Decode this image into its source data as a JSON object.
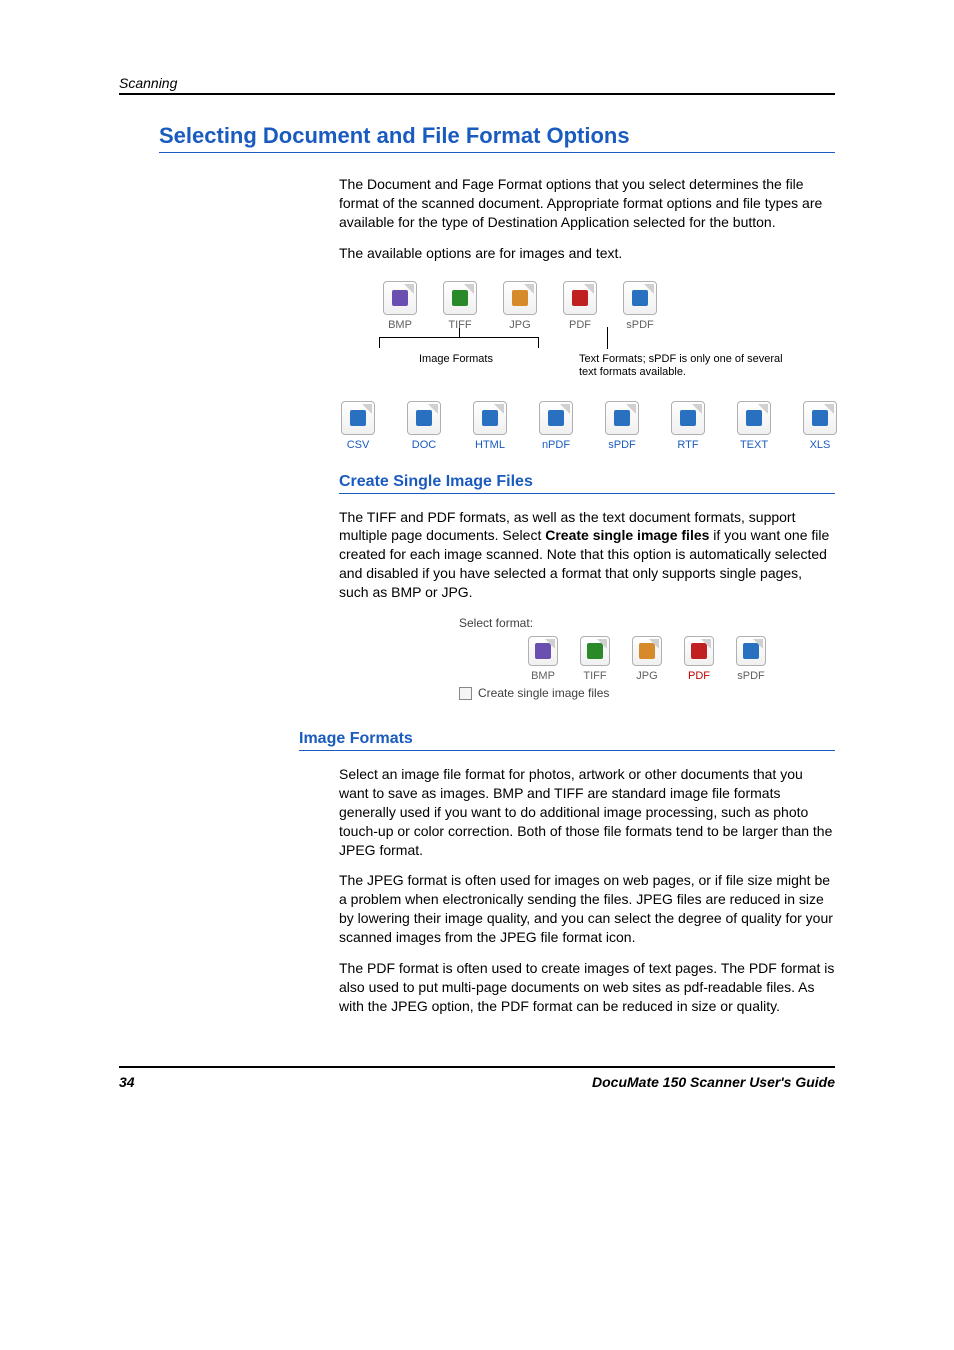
{
  "header": {
    "running": "Scanning"
  },
  "title": "Selecting Document and File Format Options",
  "intro": {
    "p1": "The Document and Fage Format options that you select determines the file format of the scanned document. Appropriate format options and file types are available for the type of Destination Application selected for the button.",
    "p2": "The available options are for images and text."
  },
  "toolbar1": {
    "items": [
      {
        "label": "BMP",
        "glyph_color": "#6a4fb0"
      },
      {
        "label": "TIFF",
        "glyph_color": "#2a8a2a"
      },
      {
        "label": "JPG",
        "glyph_color": "#d68a2a"
      },
      {
        "label": "PDF",
        "glyph_color": "#c02020"
      },
      {
        "label": "sPDF",
        "glyph_color": "#2a70c0"
      }
    ]
  },
  "brackets": {
    "left_label": "Image Formats",
    "right_label": "Text Formats; sPDF is only one of several text formats available."
  },
  "toolbar2": {
    "items": [
      {
        "label": "CSV"
      },
      {
        "label": "DOC"
      },
      {
        "label": "HTML"
      },
      {
        "label": "nPDF"
      },
      {
        "label": "sPDF"
      },
      {
        "label": "RTF"
      },
      {
        "label": "TEXT"
      },
      {
        "label": "XLS"
      }
    ],
    "label_color": "#1a5bbf",
    "glyph_color": "#2a70c0"
  },
  "section_create": {
    "heading": "Create Single Image Files",
    "p_before": "The TIFF and PDF formats, as well as the text document formats, support multiple page documents. Select ",
    "p_bold": "Create single image files",
    "p_after": " if you want one file created for each image scanned. Note that this option is automatically selected and disabled if you have selected a format that only supports single pages, such as BMP or JPG."
  },
  "select_format_panel": {
    "label": "Select format:",
    "items": [
      {
        "label": "BMP",
        "glyph_color": "#6a4fb0",
        "label_color": "#606060"
      },
      {
        "label": "TIFF",
        "glyph_color": "#2a8a2a",
        "label_color": "#606060"
      },
      {
        "label": "JPG",
        "glyph_color": "#d68a2a",
        "label_color": "#606060"
      },
      {
        "label": "PDF",
        "glyph_color": "#c02020",
        "label_color": "#c00000"
      },
      {
        "label": "sPDF",
        "glyph_color": "#2a70c0",
        "label_color": "#606060"
      }
    ],
    "checkbox_label": "Create single image files",
    "checkbox_checked": false
  },
  "section_image_formats": {
    "heading": "Image Formats",
    "p1": "Select an image file format for photos, artwork or other documents that you want to save as images. BMP and TIFF are standard image file formats generally used if you want to do additional image processing, such as photo touch-up or color correction. Both of those file formats tend to be larger than the JPEG format.",
    "p2": "The JPEG format is often used for images on web pages, or if file size might be a problem when electronically sending the files. JPEG files are reduced in size by lowering their image quality, and you can select the degree of quality for your scanned images from the JPEG file format icon.",
    "p3": "The PDF format is often used to create images of text pages. The PDF format is also used to put multi-page documents on web sites as pdf-readable files. As with the JPEG option, the PDF format can be reduced in size or quality."
  },
  "footer": {
    "page": "34",
    "guide": "DocuMate 150 Scanner User's Guide"
  }
}
